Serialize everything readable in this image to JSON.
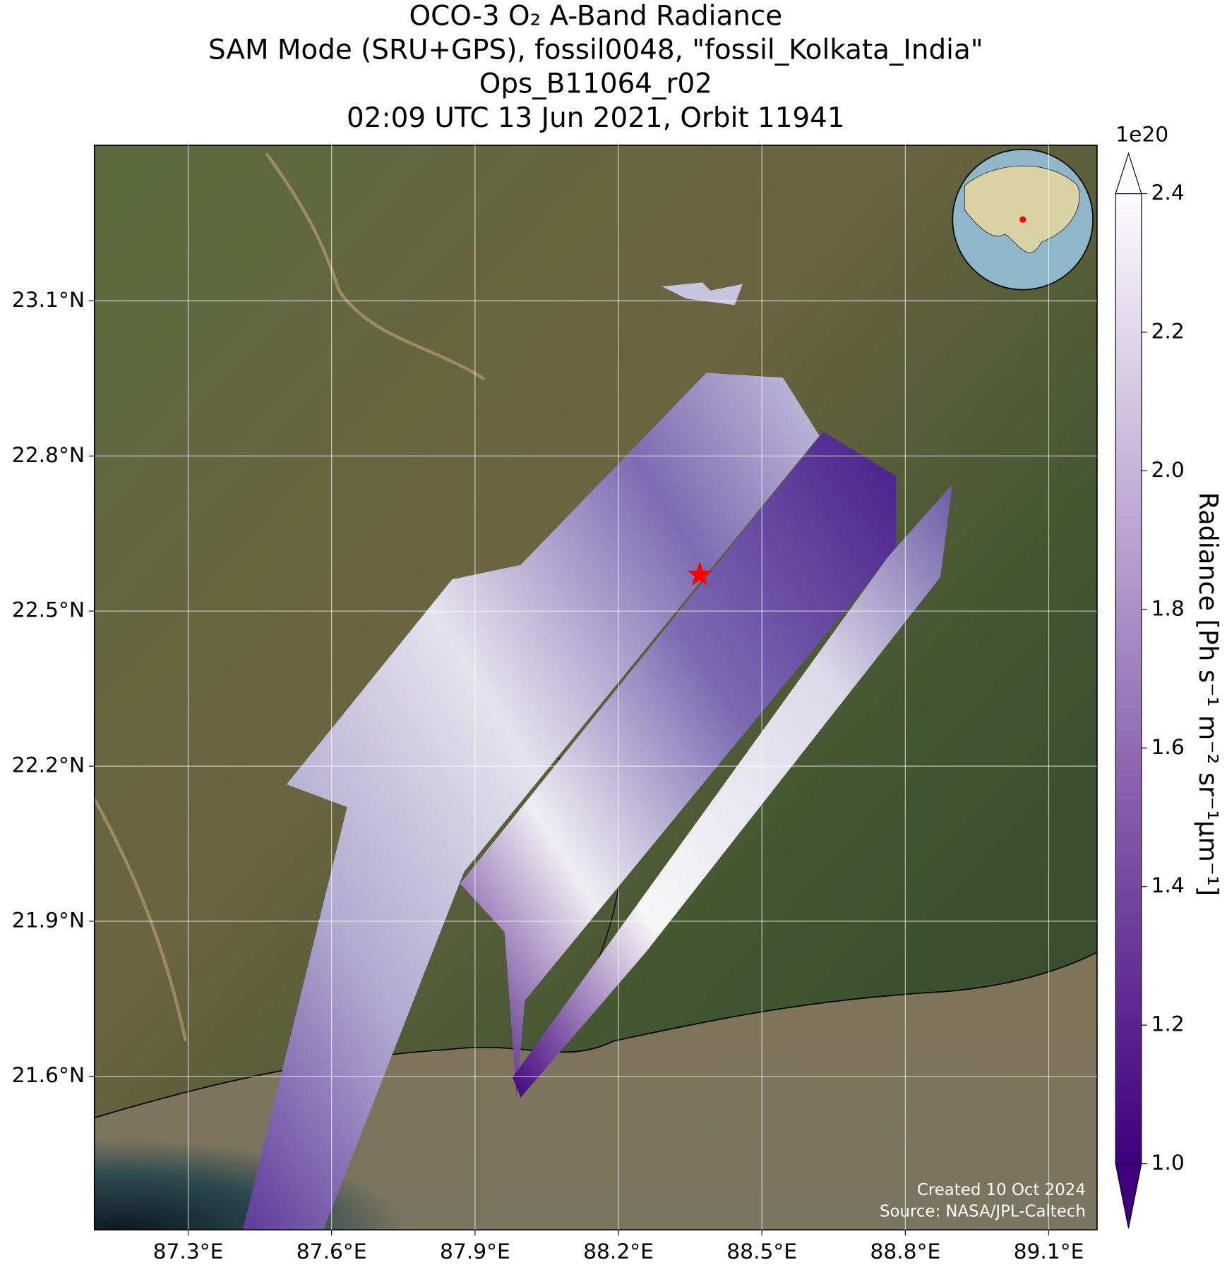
{
  "chart_data": {
    "type": "map",
    "title": [
      "OCO-3 O₂ A-Band Radiance",
      "SAM Mode (SRU+GPS), fossil0048, \"fossil_Kolkata_India\"",
      "Ops_B11064_r02",
      "02:09 UTC 13 Jun 2021, Orbit 11941"
    ],
    "xlim": [
      87.104,
      89.201
    ],
    "ylim": [
      21.303,
      23.401
    ],
    "xticks": [
      {
        "value": 87.3,
        "label": "87.3°E"
      },
      {
        "value": 87.6,
        "label": "87.6°E"
      },
      {
        "value": 87.9,
        "label": "87.9°E"
      },
      {
        "value": 88.2,
        "label": "88.2°E"
      },
      {
        "value": 88.5,
        "label": "88.5°E"
      },
      {
        "value": 88.8,
        "label": "88.8°E"
      },
      {
        "value": 89.1,
        "label": "89.1°E"
      }
    ],
    "yticks": [
      {
        "value": 21.6,
        "label": "21.6°N"
      },
      {
        "value": 21.9,
        "label": "21.9°N"
      },
      {
        "value": 22.2,
        "label": "22.2°N"
      },
      {
        "value": 22.5,
        "label": "22.5°N"
      },
      {
        "value": 22.8,
        "label": "22.8°N"
      },
      {
        "value": 23.1,
        "label": "23.1°N"
      }
    ],
    "grid": true,
    "target": {
      "lon": 88.37,
      "lat": 22.57,
      "color": "#ff0000"
    },
    "colorbar": {
      "label": "Radiance [Ph s⁻¹ m⁻² sr⁻¹μm⁻¹]",
      "exponent": "1e20",
      "clim": [
        1.0,
        2.4
      ],
      "ticks": [
        {
          "value": 1.0,
          "label": "1.0"
        },
        1.2,
        1.4,
        1.6,
        1.8,
        {
          "value": 2.0,
          "label": "2.0"
        },
        2.2,
        2.4
      ],
      "colors": [
        "#3f007d",
        "#fcfbfd"
      ]
    },
    "footer": [
      "Created 10 Oct 2024",
      "Source: NASA/JPL-Caltech"
    ]
  }
}
